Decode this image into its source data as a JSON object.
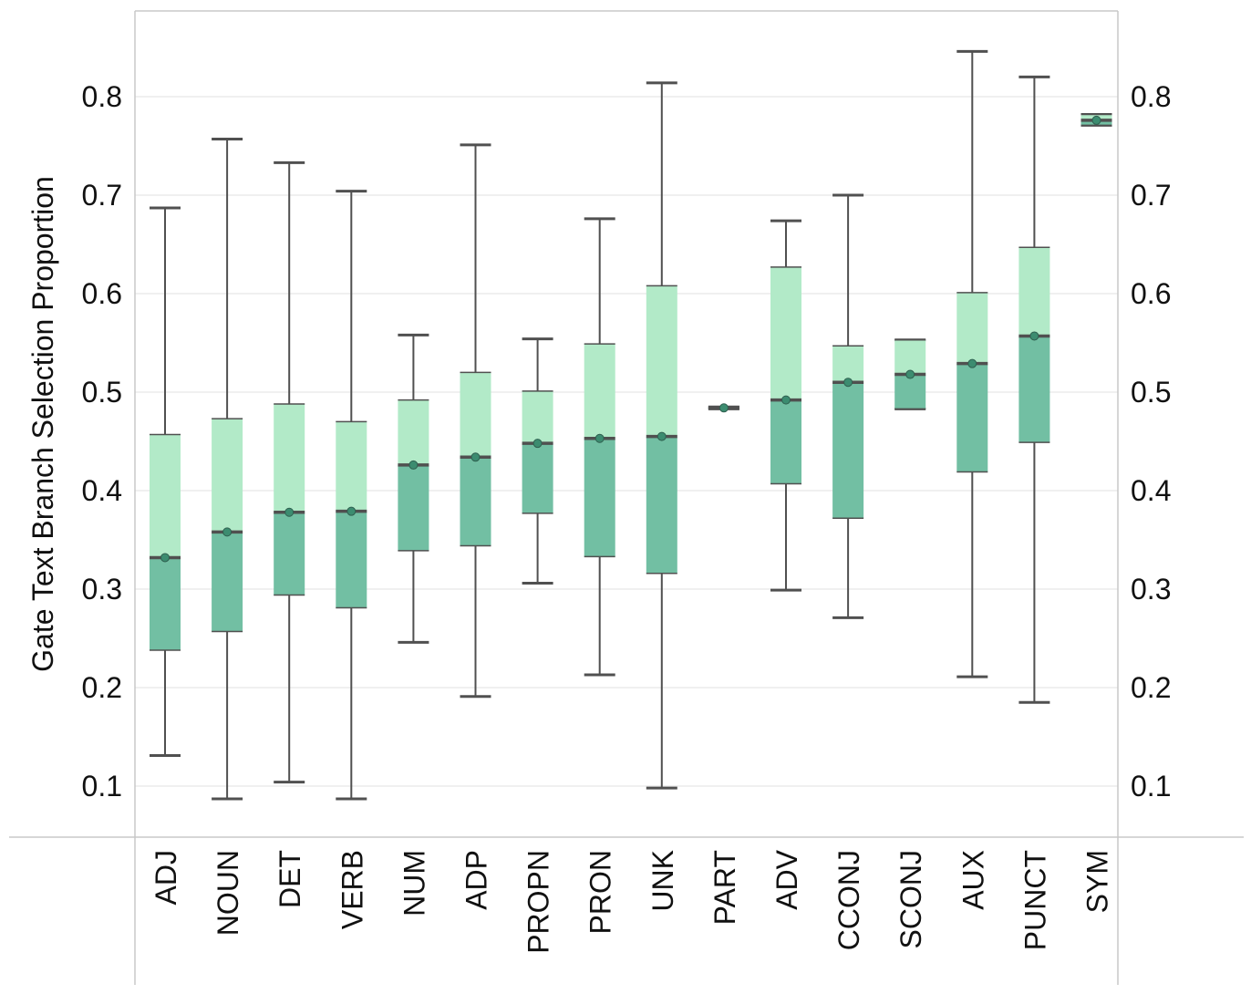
{
  "chart_data": {
    "type": "boxplot",
    "title": "",
    "xlabel": "",
    "ylabel": "Gate Text Branch Selection Proportion",
    "ylim": [
      0.05,
      0.865
    ],
    "yticks": [
      0.1,
      0.2,
      0.3,
      0.4,
      0.5,
      0.6,
      0.7,
      0.8
    ],
    "ytick_labels": [
      "0.1",
      "0.2",
      "0.3",
      "0.4",
      "0.5",
      "0.6",
      "0.7",
      "0.8"
    ],
    "grid": true,
    "legend": "none",
    "colors": {
      "lower_box": "#72bfa3",
      "upper_box": "#b2eac8",
      "lines": "#505050",
      "median_dot": "#3c8c70",
      "grid": "#ebebeb",
      "frame": "#c8c8c8"
    },
    "categories": [
      "ADJ",
      "NOUN",
      "DET",
      "VERB",
      "NUM",
      "ADP",
      "PROPN",
      "PRON",
      "UNK",
      "PART",
      "ADV",
      "CCONJ",
      "SCONJ",
      "AUX",
      "PUNCT",
      "SYM"
    ],
    "boxes": [
      {
        "category": "ADJ",
        "min": 0.131,
        "q1": 0.238,
        "median": 0.332,
        "q3": 0.457,
        "max": 0.687
      },
      {
        "category": "NOUN",
        "min": 0.087,
        "q1": 0.257,
        "median": 0.358,
        "q3": 0.473,
        "max": 0.757
      },
      {
        "category": "DET",
        "min": 0.104,
        "q1": 0.294,
        "median": 0.378,
        "q3": 0.488,
        "max": 0.733
      },
      {
        "category": "VERB",
        "min": 0.087,
        "q1": 0.281,
        "median": 0.379,
        "q3": 0.47,
        "max": 0.704
      },
      {
        "category": "NUM",
        "min": 0.246,
        "q1": 0.339,
        "median": 0.426,
        "q3": 0.492,
        "max": 0.558
      },
      {
        "category": "ADP",
        "min": 0.191,
        "q1": 0.344,
        "median": 0.434,
        "q3": 0.52,
        "max": 0.751
      },
      {
        "category": "PROPN",
        "min": 0.306,
        "q1": 0.377,
        "median": 0.448,
        "q3": 0.501,
        "max": 0.554
      },
      {
        "category": "PRON",
        "min": 0.213,
        "q1": 0.333,
        "median": 0.453,
        "q3": 0.549,
        "max": 0.676
      },
      {
        "category": "UNK",
        "min": 0.098,
        "q1": 0.316,
        "median": 0.455,
        "q3": 0.608,
        "max": 0.814
      },
      {
        "category": "PART",
        "min": 0.483,
        "q1": 0.483,
        "median": 0.484,
        "q3": 0.485,
        "max": 0.485
      },
      {
        "category": "ADV",
        "min": 0.299,
        "q1": 0.407,
        "median": 0.492,
        "q3": 0.627,
        "max": 0.674
      },
      {
        "category": "CCONJ",
        "min": 0.271,
        "q1": 0.372,
        "median": 0.51,
        "q3": 0.547,
        "max": 0.7
      },
      {
        "category": "SCONJ",
        "min": 0.483,
        "q1": 0.483,
        "median": 0.518,
        "q3": 0.553,
        "max": 0.553
      },
      {
        "category": "AUX",
        "min": 0.211,
        "q1": 0.419,
        "median": 0.529,
        "q3": 0.601,
        "max": 0.846
      },
      {
        "category": "PUNCT",
        "min": 0.185,
        "q1": 0.449,
        "median": 0.557,
        "q3": 0.647,
        "max": 0.82
      },
      {
        "category": "SYM",
        "min": 0.771,
        "q1": 0.771,
        "median": 0.776,
        "q3": 0.782,
        "max": 0.782
      }
    ]
  }
}
